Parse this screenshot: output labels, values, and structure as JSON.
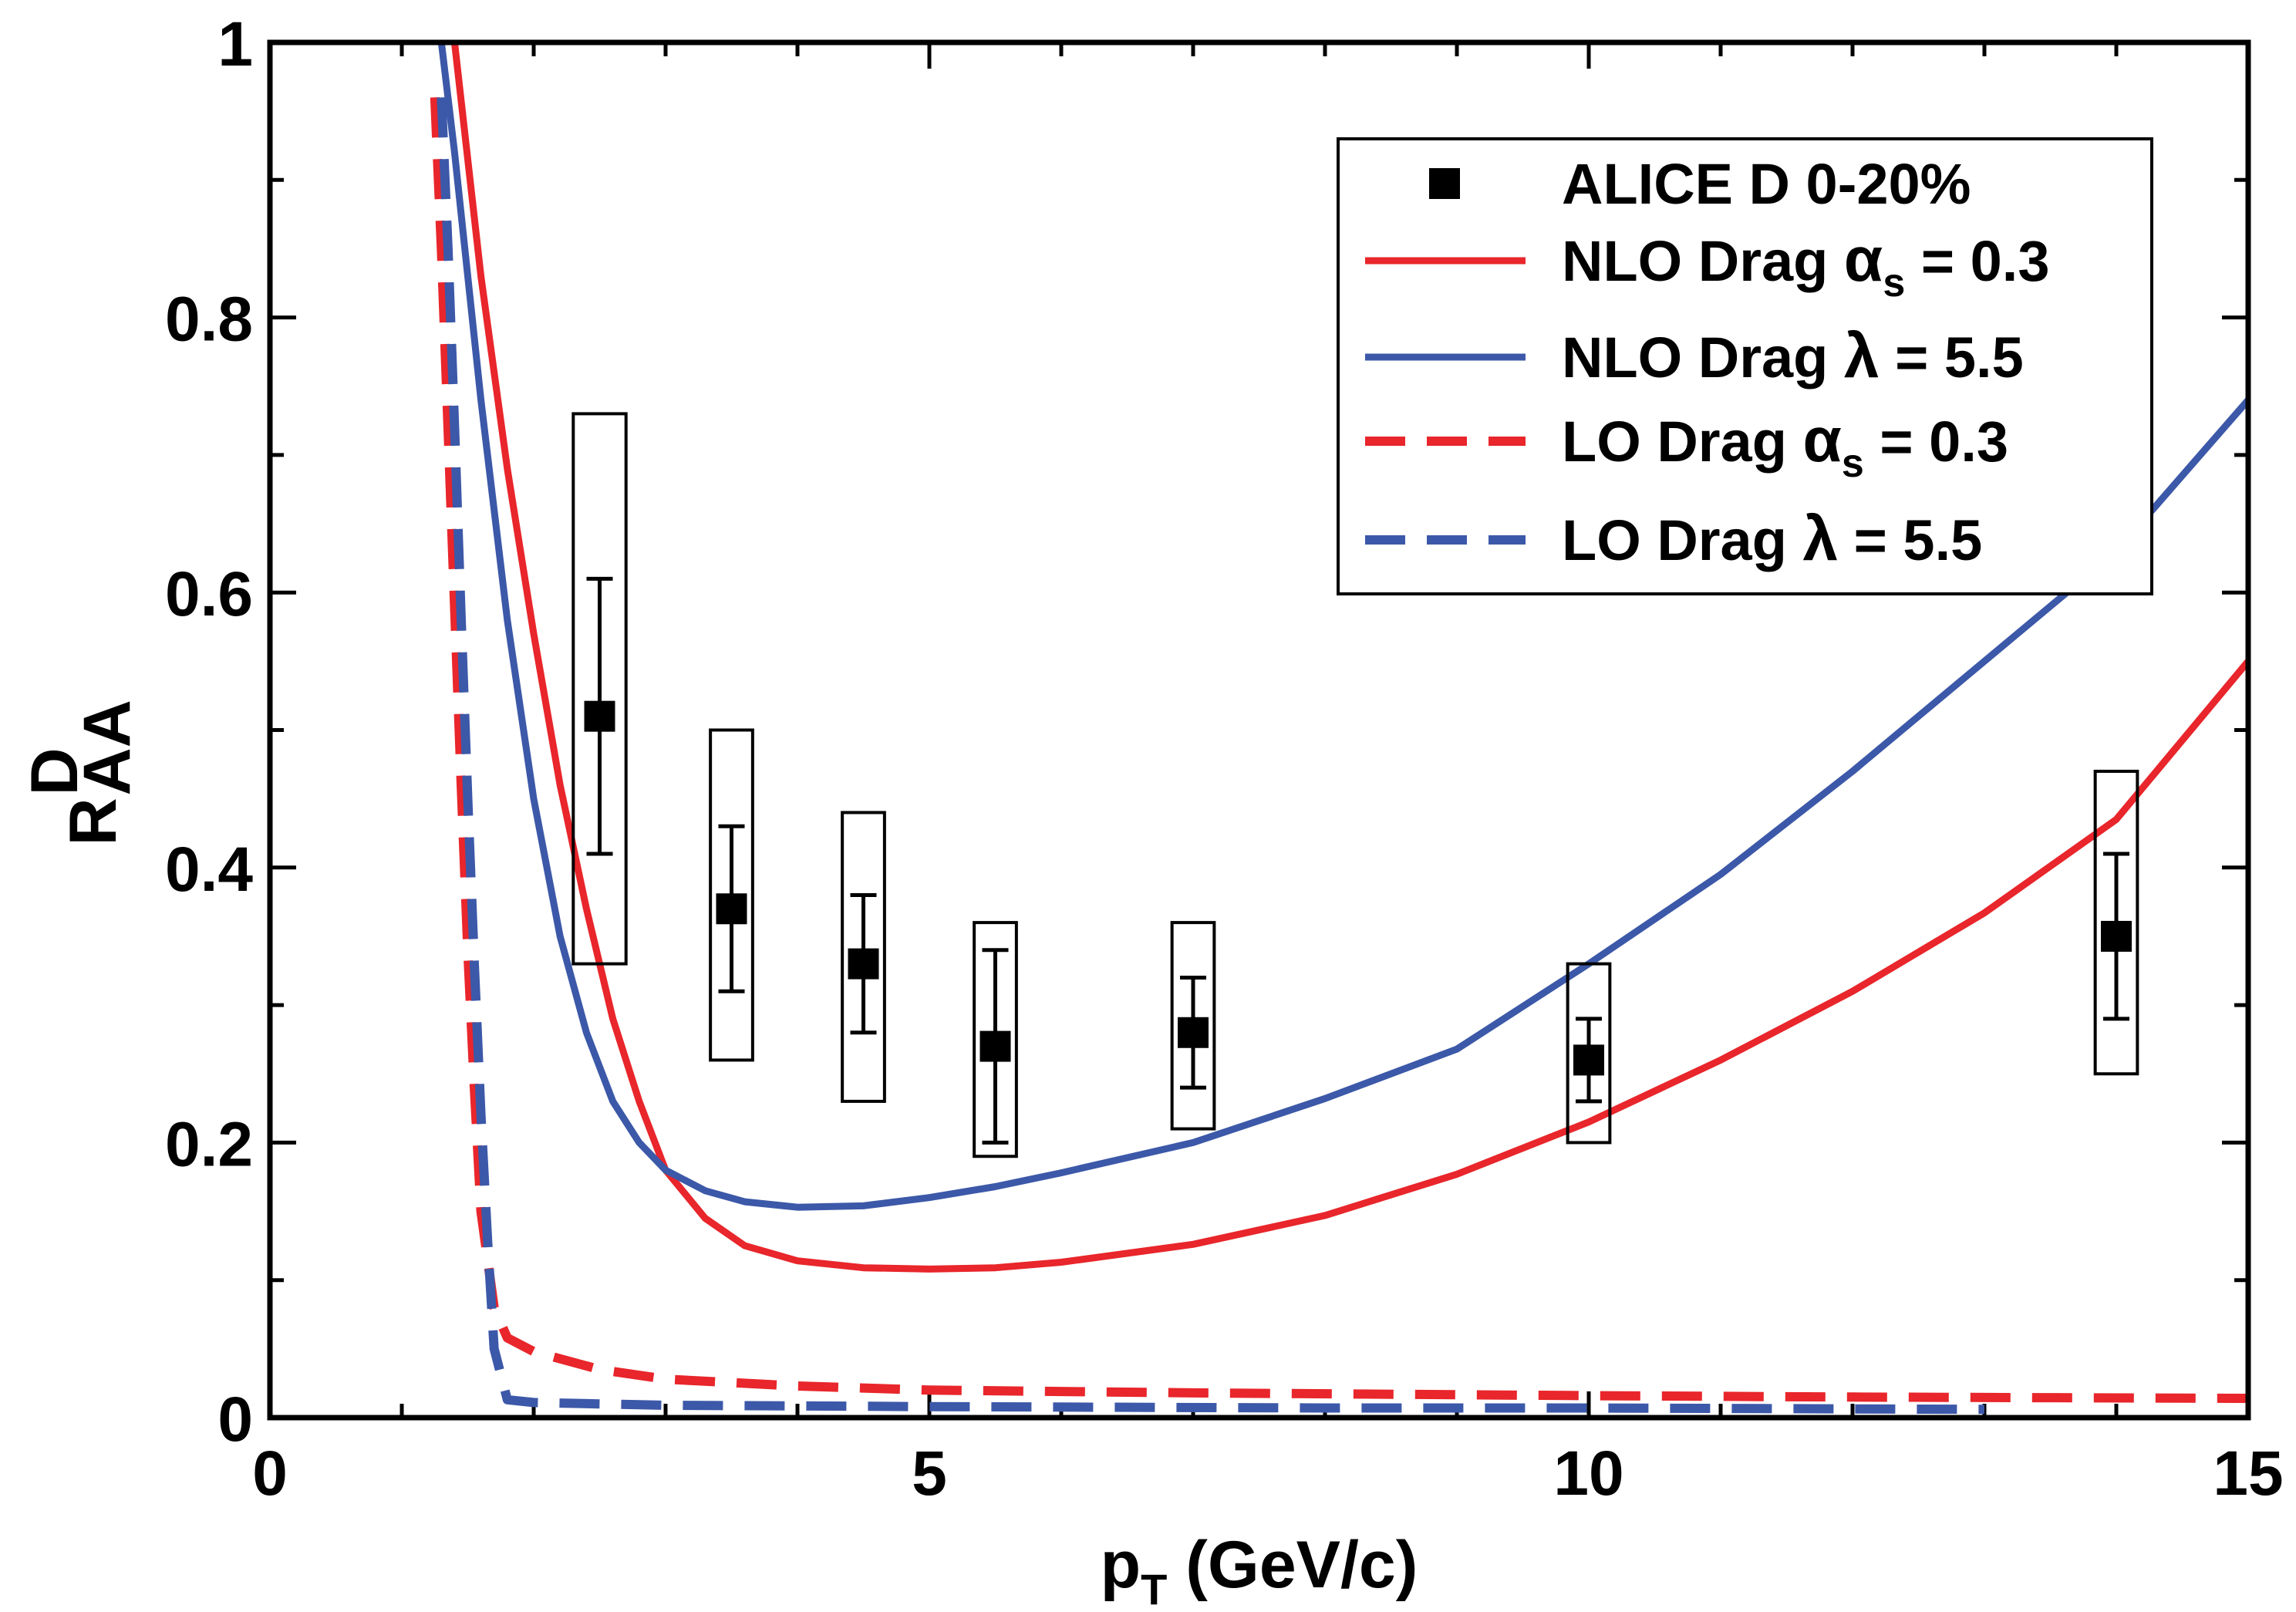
{
  "chart_data": {
    "type": "line",
    "xlabel": {
      "main": "p",
      "sub": "T",
      "rest": " (GeV/c)"
    },
    "ylabel": {
      "main": "R",
      "sup": "D",
      "sub": "AA"
    },
    "xlim": [
      0,
      15
    ],
    "ylim": [
      0,
      1
    ],
    "x_ticks": [
      "0",
      "5",
      "10",
      "15"
    ],
    "y_ticks": [
      "0",
      "0.2",
      "0.4",
      "0.6",
      "0.8",
      "1"
    ],
    "legend_position": "top-right",
    "grid": false,
    "series": [
      {
        "name": "ALICE D 0-20%",
        "kind": "points",
        "color": "#000000",
        "points": [
          {
            "x": 2.5,
            "y": 0.51,
            "stat": [
              0.41,
              0.61
            ],
            "sys": [
              0.33,
              0.73
            ],
            "sys_half_width": 0.2
          },
          {
            "x": 3.5,
            "y": 0.37,
            "stat": [
              0.31,
              0.43
            ],
            "sys": [
              0.26,
              0.5
            ],
            "sys_half_width": 0.16
          },
          {
            "x": 4.5,
            "y": 0.33,
            "stat": [
              0.28,
              0.38
            ],
            "sys": [
              0.23,
              0.44
            ],
            "sys_half_width": 0.16
          },
          {
            "x": 5.5,
            "y": 0.27,
            "stat": [
              0.2,
              0.34
            ],
            "sys": [
              0.19,
              0.36
            ],
            "sys_half_width": 0.16
          },
          {
            "x": 7.0,
            "y": 0.28,
            "stat": [
              0.24,
              0.32
            ],
            "sys": [
              0.21,
              0.36
            ],
            "sys_half_width": 0.16
          },
          {
            "x": 10.0,
            "y": 0.26,
            "stat": [
              0.23,
              0.29
            ],
            "sys": [
              0.2,
              0.33
            ],
            "sys_half_width": 0.16
          },
          {
            "x": 14.0,
            "y": 0.35,
            "stat": [
              0.29,
              0.41
            ],
            "sys": [
              0.25,
              0.47
            ],
            "sys_half_width": 0.16
          }
        ]
      },
      {
        "name": "NLO Drag αs = 0.3",
        "legend": {
          "pre": "NLO Drag ",
          "greek": "α",
          "sub": "s",
          "post": " = 0.3"
        },
        "kind": "line",
        "style": "solid",
        "color": "#e8262b",
        "x": [
          1.4,
          1.6,
          1.8,
          2.0,
          2.2,
          2.4,
          2.6,
          2.8,
          3.0,
          3.3,
          3.6,
          4.0,
          4.5,
          5.0,
          5.5,
          6.0,
          7.0,
          8.0,
          9.0,
          10.0,
          11.0,
          12.0,
          13.0,
          14.0,
          15.0
        ],
        "y": [
          1.0,
          0.83,
          0.69,
          0.57,
          0.46,
          0.37,
          0.29,
          0.23,
          0.18,
          0.145,
          0.125,
          0.114,
          0.109,
          0.108,
          0.109,
          0.113,
          0.126,
          0.147,
          0.177,
          0.215,
          0.26,
          0.31,
          0.367,
          0.435,
          0.55
        ]
      },
      {
        "name": "NLO Drag λ = 5.5",
        "legend": {
          "pre": "NLO Drag ",
          "greek": "λ",
          "sub": "",
          "post": " = 5.5"
        },
        "kind": "line",
        "style": "solid",
        "color": "#3c58a8",
        "x": [
          1.3,
          1.4,
          1.6,
          1.8,
          2.0,
          2.2,
          2.4,
          2.6,
          2.8,
          3.0,
          3.3,
          3.6,
          4.0,
          4.5,
          5.0,
          5.5,
          6.0,
          7.0,
          8.0,
          9.0,
          10.0,
          11.0,
          12.0,
          13.0,
          14.0,
          15.0
        ],
        "y": [
          1.0,
          0.92,
          0.74,
          0.58,
          0.45,
          0.35,
          0.28,
          0.23,
          0.2,
          0.18,
          0.165,
          0.157,
          0.153,
          0.154,
          0.16,
          0.168,
          0.178,
          0.2,
          0.232,
          0.268,
          0.33,
          0.395,
          0.47,
          0.55,
          0.63,
          0.74
        ]
      },
      {
        "name": "LO Drag αs = 0.3",
        "legend": {
          "pre": "LO Drag ",
          "greek": "α",
          "sub": "s",
          "post": " = 0.3"
        },
        "kind": "line",
        "style": "dashed",
        "color": "#e8262b",
        "x": [
          1.25,
          1.3,
          1.35,
          1.4,
          1.45,
          1.5,
          1.55,
          1.6,
          1.7,
          1.8,
          2.0,
          2.5,
          3.0,
          4.0,
          5.0,
          7.0,
          10.0,
          12.0,
          15.0
        ],
        "y": [
          0.96,
          0.85,
          0.72,
          0.59,
          0.46,
          0.34,
          0.24,
          0.15,
          0.08,
          0.058,
          0.048,
          0.035,
          0.028,
          0.023,
          0.02,
          0.018,
          0.016,
          0.015,
          0.014
        ]
      },
      {
        "name": "LO Drag λ = 5.5",
        "legend": {
          "pre": "LO Drag ",
          "greek": "λ",
          "sub": "",
          "post": " = 5.5"
        },
        "kind": "line",
        "style": "dashed",
        "color": "#3c58a8",
        "x": [
          1.3,
          1.35,
          1.4,
          1.45,
          1.5,
          1.55,
          1.6,
          1.65,
          1.7,
          1.8,
          2.0,
          3.0,
          5.0,
          8.0,
          10.0,
          13.0
        ],
        "y": [
          0.96,
          0.85,
          0.72,
          0.58,
          0.45,
          0.33,
          0.22,
          0.13,
          0.05,
          0.013,
          0.011,
          0.009,
          0.008,
          0.007,
          0.007,
          0.006
        ]
      }
    ]
  }
}
